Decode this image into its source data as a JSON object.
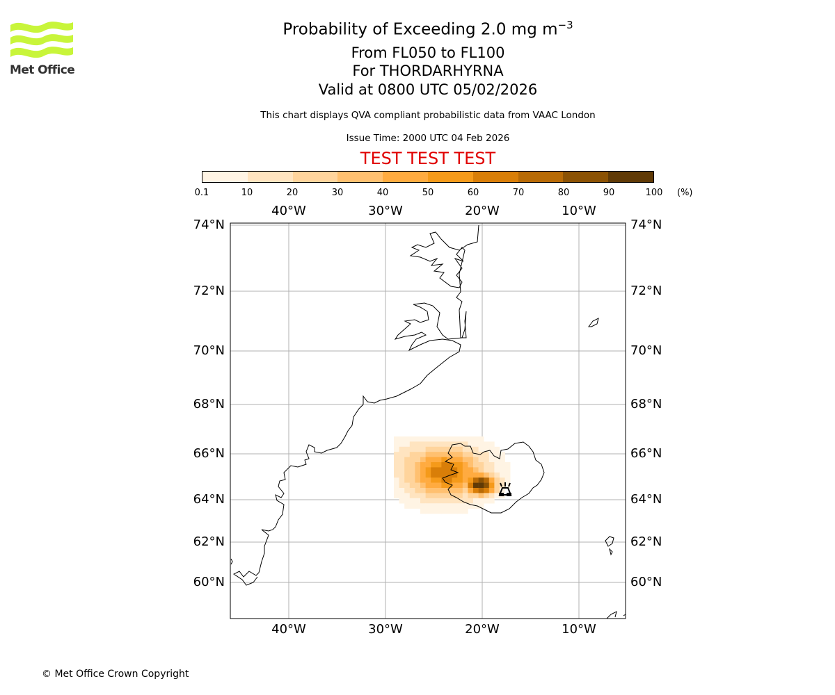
{
  "logo": {
    "name": "Met Office",
    "icon": "met-office-wave-logo",
    "color": "#c8f53a"
  },
  "title": {
    "main": "Probability of Exceeding 2.0 mg m",
    "main_exp": "−3",
    "levels": "From FL050 to FL100",
    "volcano": "For THORDARHYRNA",
    "valid": "Valid at 0800 UTC 05/02/2026"
  },
  "subtitle": "This chart displays QVA compliant probabilistic data from VAAC London",
  "issue_time": "Issue Time: 2000 UTC 04 Feb 2026",
  "test_banner": "TEST TEST TEST",
  "colorbar": {
    "ticks": [
      "0.1",
      "10",
      "20",
      "30",
      "40",
      "50",
      "60",
      "70",
      "80",
      "90",
      "100"
    ],
    "unit": "(%)",
    "colors": [
      "#fff4e4",
      "#ffe4c0",
      "#ffd49c",
      "#ffc070",
      "#ffab40",
      "#f59a1a",
      "#d97e08",
      "#b86a06",
      "#8c5204",
      "#603a06"
    ]
  },
  "map": {
    "lon_labels": [
      "40°W",
      "30°W",
      "20°W",
      "10°W"
    ],
    "lat_labels": [
      "74°N",
      "72°N",
      "70°N",
      "68°N",
      "66°N",
      "64°N",
      "62°N",
      "60°N"
    ],
    "lon_values": [
      -40,
      -30,
      -20,
      -10
    ],
    "lat_values": [
      74,
      72,
      70,
      68,
      66,
      64,
      62,
      60
    ],
    "volcano_symbol": "volcano-icon",
    "plume_max_percent": 100
  },
  "copyright": "© Met Office Crown Copyright"
}
